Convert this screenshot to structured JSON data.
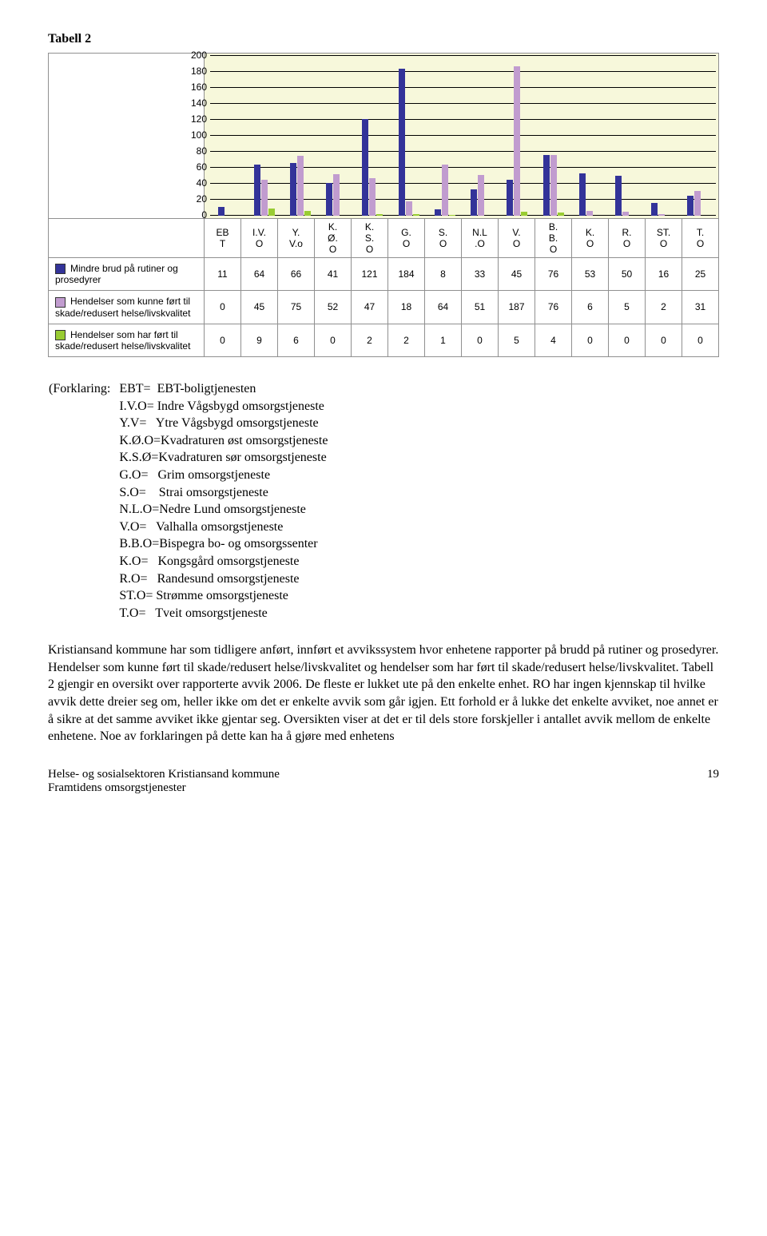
{
  "title": "Tabell 2",
  "chart": {
    "type": "bar",
    "ylim": [
      0,
      200
    ],
    "ytick_step": 20,
    "background_color": "#f7f8db",
    "grid_color": "#000000",
    "series_colors": [
      "#333399",
      "#c19ccf",
      "#99cc33"
    ],
    "categories": [
      "EB\nT",
      "I.V.\nO",
      "Y.\nV.o",
      "K.\nØ.\nO",
      "K.\nS.\nO",
      "G.\nO",
      "S.\nO",
      "N.L\n.O",
      "V.\nO",
      "B.\nB.\nO",
      "K.\nO",
      "R.\nO",
      "ST.\nO",
      "T.\nO"
    ],
    "series": [
      {
        "label": "Mindre brud på rutiner og prosedyrer",
        "values": [
          11,
          64,
          66,
          41,
          121,
          184,
          8,
          33,
          45,
          76,
          53,
          50,
          16,
          25
        ]
      },
      {
        "label": "Hendelser som kunne ført til skade/redusert helse/livskvalitet",
        "values": [
          0,
          45,
          75,
          52,
          47,
          18,
          64,
          51,
          187,
          76,
          6,
          5,
          2,
          31
        ]
      },
      {
        "label": "Hendelser som har ført til skade/redusert helse/livskvalitet",
        "values": [
          0,
          9,
          6,
          0,
          2,
          2,
          1,
          0,
          5,
          4,
          0,
          0,
          0,
          0
        ]
      }
    ]
  },
  "explain_label": "(Forklaring:",
  "explain": [
    "EBT=  EBT-boligtjenesten",
    "I.V.O= Indre Vågsbygd omsorgstjeneste",
    "Y.V=   Ytre Vågsbygd omsorgstjeneste",
    "K.Ø.O=Kvadraturen øst omsorgstjeneste",
    "K.S.Ø=Kvadraturen sør omsorgstjeneste",
    "G.O=   Grim omsorgstjeneste",
    "S.O=    Strai omsorgstjeneste",
    "N.L.O=Nedre Lund omsorgstjeneste",
    "V.O=   Valhalla omsorgstjeneste",
    "B.B.O=Bispegra bo- og omsorgssenter",
    "K.O=   Kongsgård omsorgstjeneste",
    "R.O=   Randesund omsorgstjeneste",
    "ST.O= Strømme omsorgstjeneste",
    "T.O=   Tveit omsorgstjeneste"
  ],
  "body": "Kristiansand kommune har som tidligere anført, innført et avvikssystem hvor enhetene rapporter på brudd på rutiner og prosedyrer. Hendelser som kunne ført til skade/redusert helse/livskvalitet og hendelser som har ført til skade/redusert helse/livskvalitet. Tabell 2 gjengir en oversikt over rapporterte avvik 2006. De fleste er lukket ute på den enkelte enhet. RO har ingen kjennskap til hvilke avvik dette dreier seg om, heller ikke om det er enkelte avvik som går igjen. Ett forhold er å lukke det enkelte avviket, noe annet er å sikre at det samme avviket ikke gjentar seg. Oversikten viser at det er til dels store forskjeller i antallet avvik mellom de enkelte enhetene. Noe av forklaringen på dette kan ha å gjøre med enhetens",
  "footer_left": "Helse- og sosialsektoren Kristiansand kommune\nFramtidens omsorgstjenester",
  "footer_page": "19"
}
